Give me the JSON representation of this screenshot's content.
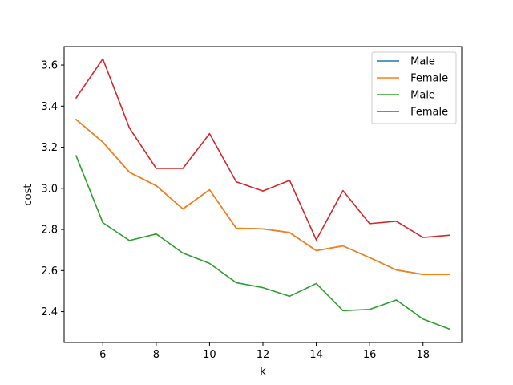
{
  "chart_data": {
    "type": "line",
    "title": "",
    "xlabel": "k",
    "ylabel": "cost",
    "xlim": [
      4.55,
      19.45
    ],
    "ylim": [
      2.25,
      3.69
    ],
    "xticks": [
      6,
      8,
      10,
      12,
      14,
      16,
      18
    ],
    "yticks": [
      2.4,
      2.6,
      2.8,
      3.0,
      3.2,
      3.4,
      3.6
    ],
    "xtick_labels": [
      "6",
      "8",
      "10",
      "12",
      "14",
      "16",
      "18"
    ],
    "ytick_labels": [
      "2.4",
      "2.6",
      "2.8",
      "3.0",
      "3.2",
      "3.4",
      "3.6"
    ],
    "grid": false,
    "legend_position": "top-right",
    "x": [
      5,
      6,
      7,
      8,
      9,
      10,
      11,
      12,
      13,
      14,
      15,
      16,
      17,
      18,
      19
    ],
    "series": [
      {
        "name": " Male",
        "color": "#1f77b4",
        "values": [
          3.335,
          3.225,
          3.078,
          3.013,
          2.9,
          2.993,
          2.806,
          2.803,
          2.785,
          2.697,
          2.72,
          2.663,
          2.603,
          2.581,
          2.581
        ]
      },
      {
        "name": " Female",
        "color": "#ff7f0e",
        "values": [
          3.335,
          3.225,
          3.078,
          3.013,
          2.9,
          2.993,
          2.806,
          2.803,
          2.785,
          2.697,
          2.72,
          2.663,
          2.603,
          2.581,
          2.581
        ]
      },
      {
        "name": " Male",
        "color": "#2ca02c",
        "values": [
          3.158,
          2.833,
          2.746,
          2.778,
          2.685,
          2.635,
          2.541,
          2.517,
          2.475,
          2.537,
          2.405,
          2.411,
          2.457,
          2.364,
          2.315
        ]
      },
      {
        "name": " Female",
        "color": "#d62728",
        "values": [
          3.44,
          3.63,
          3.293,
          3.097,
          3.097,
          3.266,
          3.032,
          2.987,
          3.039,
          2.749,
          2.989,
          2.828,
          2.84,
          2.761,
          2.772
        ]
      }
    ]
  }
}
